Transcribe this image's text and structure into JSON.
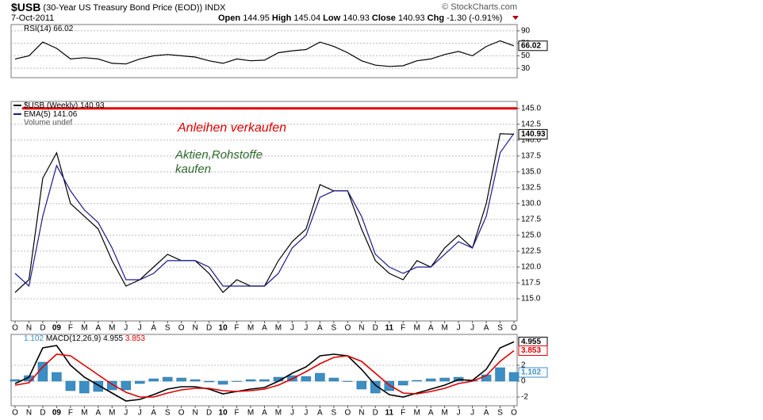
{
  "header": {
    "symbol": "$USB",
    "title": "(30-Year US Treasury Bond Price (EOD))",
    "exchange": "INDX",
    "source": "© StockCharts.com",
    "date": "7-Oct-2011",
    "quote": [
      {
        "label": "Open",
        "value": 144.95
      },
      {
        "label": "High",
        "value": 145.04
      },
      {
        "label": "Low",
        "value": 140.93
      },
      {
        "label": "Close",
        "value": 140.93
      },
      {
        "label": "Chg",
        "value": "-1.30 (-0.91%)"
      }
    ]
  },
  "chart_data": [
    {
      "type": "line",
      "legend_layout": "row",
      "grid": true,
      "ylim": [
        15,
        100
      ],
      "yticks": [
        30,
        50,
        70,
        90
      ],
      "series": [
        {
          "name": "RSI(14)",
          "color": "#000000",
          "box": true,
          "values": [
            45,
            50,
            72,
            62,
            45,
            47,
            45,
            38,
            37,
            45,
            50,
            52,
            50,
            48,
            42,
            38,
            45,
            42,
            43,
            55,
            58,
            60,
            72,
            65,
            55,
            42,
            35,
            33,
            34,
            42,
            45,
            52,
            57,
            50,
            65,
            74,
            66.02
          ]
        }
      ]
    },
    {
      "type": "line",
      "legend_layout": "column",
      "grid": true,
      "legend_extra": "Volume undef",
      "categories": [
        "O",
        "N",
        "D",
        "09",
        "F",
        "M",
        "A",
        "M",
        "J",
        "J",
        "A",
        "S",
        "O",
        "N",
        "D",
        "10",
        "F",
        "M",
        "A",
        "M",
        "J",
        "J",
        "A",
        "S",
        "O",
        "N",
        "D",
        "11",
        "F",
        "M",
        "A",
        "M",
        "J",
        "J",
        "A",
        "S",
        "O"
      ],
      "ylim": [
        111.5,
        146.1
      ],
      "yticks": [
        {
          "value": 115,
          "label": "115.0"
        },
        {
          "value": 117.5,
          "label": "117.5"
        },
        {
          "value": 120,
          "label": "120.0"
        },
        {
          "value": 122.5,
          "label": "122.5"
        },
        {
          "value": 125,
          "label": "125.0"
        },
        {
          "value": 127.5,
          "label": "127.5"
        },
        {
          "value": 130,
          "label": "130.0"
        },
        {
          "value": 132.5,
          "label": "132.5"
        },
        {
          "value": 135,
          "label": "135.0"
        },
        {
          "value": 137.5,
          "label": "137.5"
        },
        {
          "value": 140,
          "label": "140.0"
        },
        {
          "value": 142.5,
          "label": "142.5"
        },
        {
          "value": 145,
          "label": "145.0"
        }
      ],
      "hlines": [
        {
          "value": 145,
          "color": "#e00000"
        }
      ],
      "annotations": [
        {
          "text": "Anleihen verkaufen",
          "color": "#e00000"
        },
        {
          "text": "Aktien,Rohstoffe",
          "color": "#2d6a2d"
        },
        {
          "text": "kaufen",
          "color": "#2d6a2d"
        }
      ],
      "series": [
        {
          "name": "$USB (Weekly)",
          "color": "#000000",
          "box": true,
          "values": [
            116,
            118,
            134,
            138,
            130,
            128,
            126,
            121,
            117,
            118,
            120,
            122,
            121,
            121,
            119,
            116,
            118,
            117,
            117,
            121,
            124,
            126,
            133,
            132,
            132,
            126,
            121,
            119,
            118,
            121,
            120,
            123,
            125,
            123,
            130,
            141,
            140.93
          ]
        },
        {
          "name": "EMA(5)",
          "color": "#1a1a8c",
          "values": [
            119,
            117,
            128,
            136,
            132,
            129,
            127,
            123,
            118,
            118,
            119,
            121,
            121,
            121,
            120,
            117,
            117,
            117,
            117,
            119,
            123,
            125,
            131,
            132,
            132,
            128,
            122,
            120,
            119,
            120,
            120,
            122,
            124,
            123,
            128,
            138,
            141.06
          ]
        }
      ]
    },
    {
      "type": "line",
      "legend_layout": "row",
      "grid": true,
      "categories": [
        "O",
        "N",
        "D",
        "09",
        "F",
        "M",
        "A",
        "M",
        "J",
        "J",
        "A",
        "S",
        "O",
        "N",
        "D",
        "10",
        "F",
        "M",
        "A",
        "M",
        "J",
        "J",
        "A",
        "S",
        "O",
        "N",
        "D",
        "11",
        "F",
        "M",
        "A",
        "M",
        "J",
        "J",
        "A",
        "S",
        "O"
      ],
      "ylim": [
        -3.1,
        5.9
      ],
      "yticks": [
        -2,
        0,
        2
      ],
      "series": [
        {
          "kind": "bar",
          "color": "#3b8fc4",
          "box": true,
          "values": [
            0.2,
            0.7,
            2.4,
            1.1,
            -1.2,
            -1.5,
            -1.3,
            -1.1,
            -1.1,
            -0.3,
            0.3,
            0.5,
            0.4,
            0.2,
            -0.1,
            -0.4,
            0.0,
            0.2,
            0.2,
            0.5,
            0.7,
            0.6,
            1.0,
            0.4,
            0.0,
            -1.0,
            -1.5,
            -1.2,
            -0.5,
            0.1,
            0.3,
            0.4,
            0.5,
            0.1,
            0.8,
            1.7,
            1.102
          ]
        },
        {
          "name": "MACD(12,26,9)",
          "color": "#000000",
          "box": true,
          "values": [
            -0.3,
            0.5,
            4.2,
            4.5,
            2.0,
            0.5,
            -0.5,
            -1.5,
            -2.5,
            -2.3,
            -1.7,
            -1.0,
            -0.7,
            -0.7,
            -1.0,
            -1.6,
            -1.3,
            -1.0,
            -0.8,
            0.0,
            1.0,
            1.8,
            3.2,
            3.4,
            3.2,
            1.5,
            -0.5,
            -1.7,
            -2.0,
            -1.5,
            -1.0,
            -0.5,
            0.2,
            0.1,
            1.5,
            4.2,
            4.955
          ]
        },
        {
          "color": "#e00000",
          "box": true,
          "values": [
            -0.5,
            -0.2,
            1.8,
            3.4,
            3.2,
            2.0,
            0.8,
            -0.4,
            -1.4,
            -2.0,
            -2.0,
            -1.5,
            -1.1,
            -0.9,
            -0.9,
            -1.2,
            -1.3,
            -1.2,
            -1.0,
            -0.5,
            0.3,
            1.2,
            2.2,
            3.0,
            3.2,
            2.5,
            1.0,
            -0.5,
            -1.5,
            -1.6,
            -1.3,
            -0.9,
            -0.3,
            0.0,
            0.7,
            2.5,
            3.853
          ]
        }
      ]
    }
  ]
}
